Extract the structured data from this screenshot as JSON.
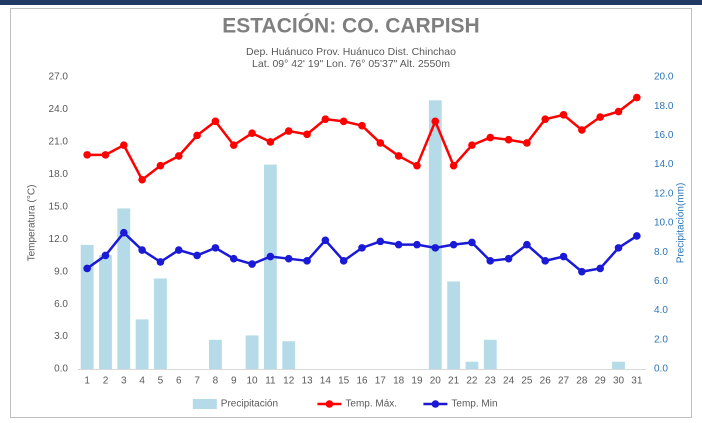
{
  "chart_data": {
    "type": "combo",
    "title": "ESTACIÓN: CO. CARPISH",
    "subtitle": [
      "Dep. Huánuco Prov. Huánuco Dist. Chinchao",
      "Lat. 09° 42' 19\" Lon. 76° 05'37\" Alt. 2550m"
    ],
    "ylabel": "Temperatura (°C)",
    "y2label": "Precipitación(mm)",
    "categories": [
      1,
      2,
      3,
      4,
      5,
      6,
      7,
      8,
      9,
      10,
      11,
      12,
      13,
      14,
      15,
      16,
      17,
      18,
      19,
      20,
      21,
      22,
      23,
      24,
      25,
      26,
      27,
      28,
      29,
      30,
      31
    ],
    "series": [
      {
        "name": "Precipitación",
        "type": "bar",
        "axis": "y2",
        "color": "#b4dbe7",
        "values": [
          8.5,
          7.8,
          11.0,
          3.4,
          6.2,
          0,
          0,
          2.0,
          0,
          2.3,
          14.0,
          1.9,
          0,
          0,
          0,
          0,
          0,
          0,
          0,
          18.4,
          6.0,
          0.5,
          2.0,
          0,
          0,
          0,
          0,
          0,
          0,
          0.5,
          0
        ]
      },
      {
        "name": "Temp. Máx.",
        "type": "line",
        "axis": "y",
        "color": "#ff0000",
        "values": [
          19.8,
          19.8,
          20.7,
          17.5,
          18.8,
          19.7,
          21.6,
          22.9,
          20.7,
          21.8,
          21.0,
          22.0,
          21.7,
          23.1,
          22.9,
          22.5,
          20.9,
          19.7,
          18.8,
          22.9,
          18.8,
          20.7,
          21.4,
          21.2,
          20.9,
          23.1,
          23.5,
          22.1,
          23.3,
          23.8,
          25.1
        ]
      },
      {
        "name": "Temp. Min",
        "type": "line",
        "axis": "y",
        "color": "#1a1ad6",
        "values": [
          9.3,
          10.5,
          12.6,
          11.0,
          9.9,
          11.0,
          10.5,
          11.2,
          10.2,
          9.7,
          10.4,
          10.2,
          10.0,
          11.9,
          10.0,
          11.2,
          11.8,
          11.5,
          11.5,
          11.2,
          11.5,
          11.7,
          10.0,
          10.2,
          11.5,
          10.0,
          10.4,
          9.0,
          9.3,
          11.2,
          12.3
        ]
      }
    ],
    "ylim": [
      0,
      27
    ],
    "yticks": [
      {
        "value": 0,
        "label": "0.0"
      },
      {
        "value": 3,
        "label": "3.0"
      },
      {
        "value": 6,
        "label": "6.0"
      },
      {
        "value": 9,
        "label": "9.0"
      },
      {
        "value": 12,
        "label": "12.0"
      },
      {
        "value": 15,
        "label": "15.0"
      },
      {
        "value": 18,
        "label": "18.0"
      },
      {
        "value": 21,
        "label": "21.0"
      },
      {
        "value": 24,
        "label": "24.0"
      },
      {
        "value": 27,
        "label": "27.0"
      }
    ],
    "y2lim": [
      0,
      20
    ],
    "y2ticks": [
      {
        "value": 0,
        "label": "0.0"
      },
      {
        "value": 2,
        "label": "2.0"
      },
      {
        "value": 4,
        "label": "4.0"
      },
      {
        "value": 6,
        "label": "6.0"
      },
      {
        "value": 8,
        "label": "8.0"
      },
      {
        "value": 10,
        "label": "10.0"
      },
      {
        "value": 12,
        "label": "12.0"
      },
      {
        "value": 14,
        "label": "14.0"
      },
      {
        "value": 16,
        "label": "16.0"
      },
      {
        "value": 18,
        "label": "18.0"
      },
      {
        "value": 20,
        "label": "20.0"
      }
    ],
    "grid": false,
    "legend": "bottom"
  }
}
